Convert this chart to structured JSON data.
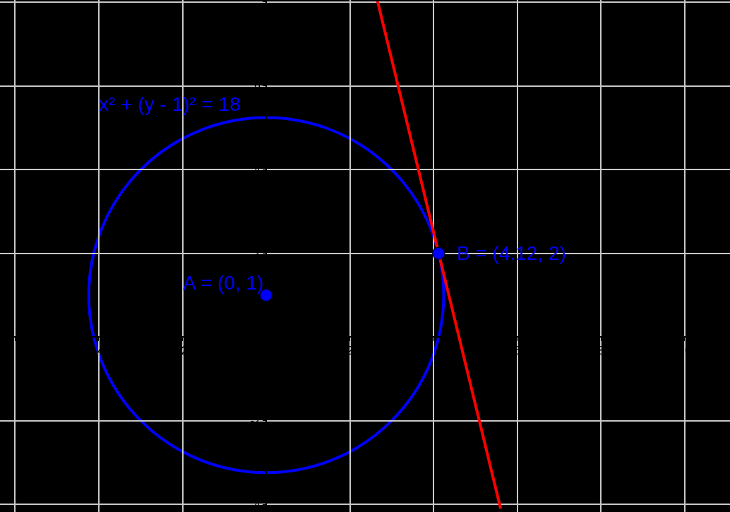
{
  "chart_data": {
    "type": "line",
    "xlim": [
      -6.36,
      11.08
    ],
    "ylim": [
      -4.18,
      8.05
    ],
    "xticks": [
      {
        "value": -6,
        "label": null
      },
      -4,
      -2,
      2,
      {
        "value": 4,
        "label": null
      },
      6,
      8,
      10
    ],
    "yticks": [
      -4,
      -2,
      2,
      4,
      6,
      {
        "value": 8,
        "label": null
      }
    ],
    "grid": true,
    "line_style": "solid",
    "series": [
      {
        "color": "#ff0000",
        "marker": "none",
        "x": [
          2.66,
          5.6
        ],
        "values": [
          8.02,
          -4.1
        ]
      },
      {
        "type": "scatter",
        "color": "#0000ff",
        "marker": "circle",
        "x": [
          0,
          4.12
        ],
        "values": [
          1,
          2
        ]
      }
    ],
    "annotations": [
      "x² + (y - 1)² = 18",
      {
        "text": "A = (0, 1)",
        "x": 0,
        "y": 1
      },
      {
        "text": "B = (4.12, 2)",
        "x": 4.12,
        "y": 2
      }
    ]
  }
}
